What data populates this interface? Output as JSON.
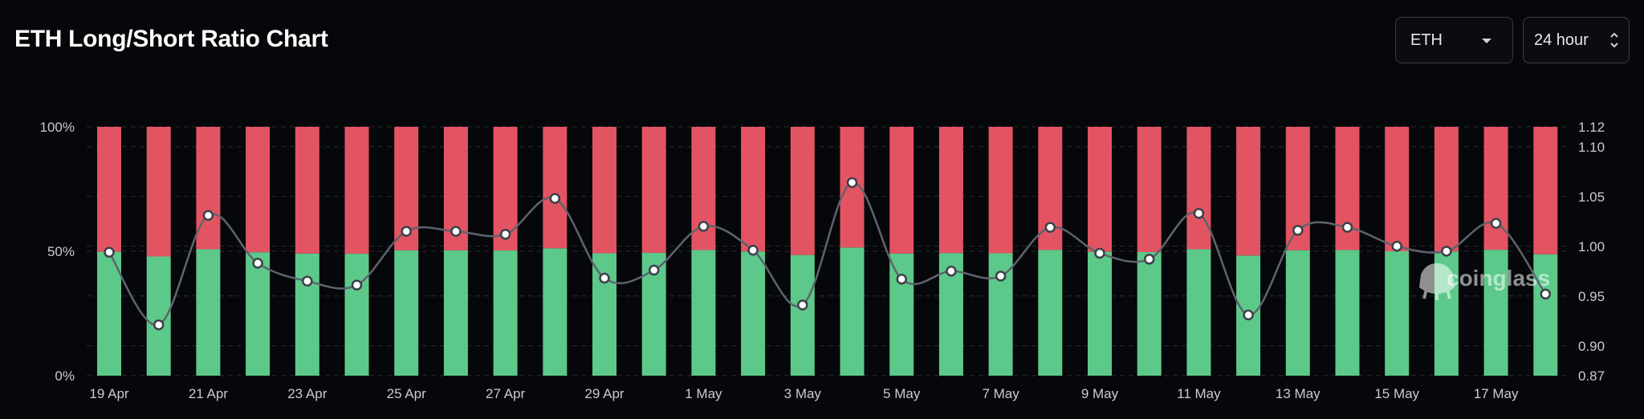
{
  "header": {
    "title": "ETH Long/Short Ratio Chart",
    "coin_select": "ETH",
    "period_select": "24 hour"
  },
  "watermark": "coinglass",
  "colors": {
    "background": "#06070a",
    "long_bar": "#5cc98a",
    "short_bar": "#e35463",
    "ratio_line": "#5e636d",
    "grid": "#2a2d33"
  },
  "chart_data": {
    "type": "bar",
    "stacked": true,
    "title": "ETH Long/Short Ratio Chart",
    "categories": [
      "19 Apr",
      "20 Apr",
      "21 Apr",
      "22 Apr",
      "23 Apr",
      "24 Apr",
      "25 Apr",
      "26 Apr",
      "27 Apr",
      "28 Apr",
      "29 Apr",
      "30 Apr",
      "1 May",
      "2 May",
      "3 May",
      "4 May",
      "5 May",
      "6 May",
      "7 May",
      "8 May",
      "9 May",
      "10 May",
      "11 May",
      "12 May",
      "13 May",
      "14 May",
      "15 May",
      "16 May",
      "17 May",
      "18 May"
    ],
    "x_tick_labels": [
      "19 Apr",
      "21 Apr",
      "23 Apr",
      "25 Apr",
      "27 Apr",
      "29 Apr",
      "1 May",
      "3 May",
      "5 May",
      "7 May",
      "9 May",
      "11 May",
      "13 May",
      "15 May",
      "17 May"
    ],
    "left_axis": {
      "ticks": [
        "0%",
        "50%",
        "100%"
      ],
      "ylim": [
        0,
        100
      ]
    },
    "right_axis": {
      "ticks": [
        "0.87",
        "0.90",
        "0.95",
        "1.00",
        "1.05",
        "1.10",
        "1.12"
      ],
      "ylim": [
        0.87,
        1.12
      ]
    },
    "grid": true,
    "series": [
      {
        "name": "Long",
        "axis": "left",
        "values": [
          49.8,
          47.9,
          50.8,
          49.6,
          49.1,
          49.0,
          50.4,
          50.4,
          50.3,
          51.2,
          49.2,
          49.4,
          50.5,
          49.9,
          48.5,
          51.5,
          49.1,
          49.3,
          49.2,
          50.5,
          49.8,
          49.7,
          50.8,
          48.3,
          50.4,
          50.5,
          50.0,
          49.9,
          50.6,
          48.8
        ]
      },
      {
        "name": "Short",
        "axis": "left",
        "values": [
          50.2,
          52.1,
          49.2,
          50.4,
          50.9,
          51.0,
          49.6,
          49.6,
          49.7,
          48.8,
          50.8,
          50.6,
          49.5,
          50.1,
          51.5,
          48.5,
          50.9,
          50.7,
          50.8,
          49.5,
          50.2,
          50.3,
          49.2,
          51.7,
          49.6,
          49.5,
          50.0,
          50.1,
          49.4,
          51.2
        ]
      },
      {
        "name": "Long/Short Ratio",
        "type": "line",
        "axis": "right",
        "values": [
          0.994,
          0.921,
          1.031,
          0.983,
          0.965,
          0.961,
          1.015,
          1.015,
          1.012,
          1.048,
          0.968,
          0.976,
          1.02,
          0.996,
          0.941,
          1.064,
          0.967,
          0.975,
          0.97,
          1.019,
          0.993,
          0.987,
          1.033,
          0.931,
          1.016,
          1.019,
          1.0,
          0.995,
          1.023,
          0.952
        ]
      }
    ]
  }
}
